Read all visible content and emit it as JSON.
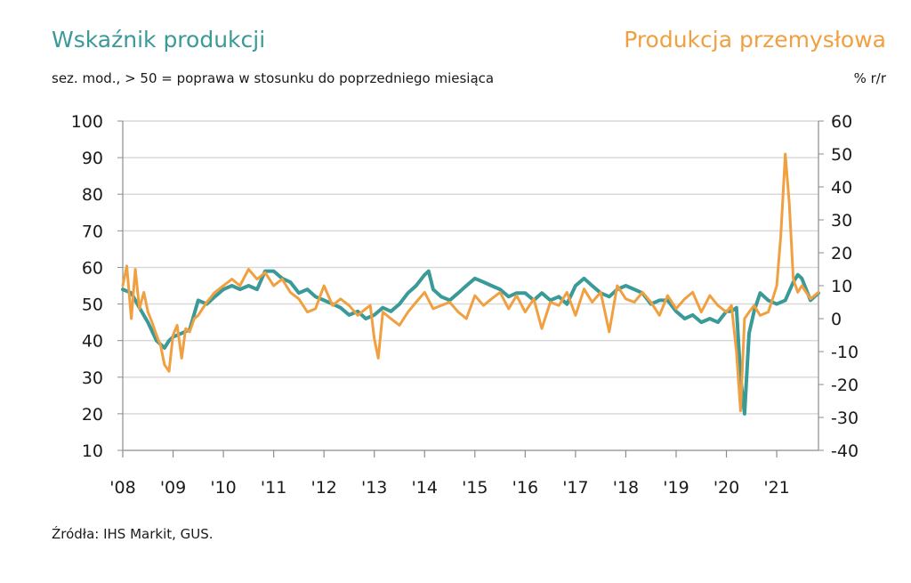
{
  "header": {
    "title_left": "Wskaźnik produkcji",
    "title_right": "Produkcja przemysłowa",
    "subtitle": "sez. mod., > 50 = poprawa w stosunku do poprzedniego miesiąca",
    "unit_right": "% r/r"
  },
  "footer": {
    "source": "Źródła: IHS Markit, GUS."
  },
  "colors": {
    "pmi": "#3a9a98",
    "production": "#f0a040",
    "grid": "#d9d9d9",
    "axis": "#8c8c8c"
  },
  "chart_data": {
    "type": "line",
    "x_range": [
      2008.0,
      2021.83
    ],
    "x_ticks": [
      {
        "year": 2008,
        "label": "'08"
      },
      {
        "year": 2009,
        "label": "'09"
      },
      {
        "year": 2010,
        "label": "'10"
      },
      {
        "year": 2011,
        "label": "'11"
      },
      {
        "year": 2012,
        "label": "'12"
      },
      {
        "year": 2013,
        "label": "'13"
      },
      {
        "year": 2014,
        "label": "'14"
      },
      {
        "year": 2015,
        "label": "'15"
      },
      {
        "year": 2016,
        "label": "'16"
      },
      {
        "year": 2017,
        "label": "'17"
      },
      {
        "year": 2018,
        "label": "'18"
      },
      {
        "year": 2019,
        "label": "'19"
      },
      {
        "year": 2020,
        "label": "'20"
      },
      {
        "year": 2021,
        "label": "'21"
      }
    ],
    "y_left": {
      "min": 10,
      "max": 100,
      "ticks": [
        "100",
        "90",
        "80",
        "70",
        "60",
        "50",
        "40",
        "30",
        "20",
        "10"
      ]
    },
    "y_right": {
      "min": -40,
      "max": 60,
      "ticks": [
        "60",
        "50",
        "40",
        "30",
        "20",
        "10",
        "0",
        "-10",
        "-20",
        "-30",
        "-40"
      ]
    },
    "grid": true,
    "series": [
      {
        "name": "Wskaźnik produkcji",
        "axis": "left",
        "x": [
          2008.0,
          2008.17,
          2008.33,
          2008.5,
          2008.67,
          2008.83,
          2008.92,
          2009.0,
          2009.17,
          2009.33,
          2009.5,
          2009.67,
          2009.83,
          2010.0,
          2010.17,
          2010.33,
          2010.5,
          2010.67,
          2010.83,
          2011.0,
          2011.17,
          2011.33,
          2011.5,
          2011.67,
          2011.83,
          2012.0,
          2012.17,
          2012.33,
          2012.5,
          2012.67,
          2012.83,
          2013.0,
          2013.17,
          2013.33,
          2013.5,
          2013.67,
          2013.83,
          2014.0,
          2014.08,
          2014.17,
          2014.33,
          2014.5,
          2014.67,
          2014.83,
          2015.0,
          2015.17,
          2015.33,
          2015.5,
          2015.67,
          2015.83,
          2016.0,
          2016.17,
          2016.33,
          2016.5,
          2016.67,
          2016.83,
          2017.0,
          2017.17,
          2017.33,
          2017.5,
          2017.67,
          2017.83,
          2018.0,
          2018.17,
          2018.33,
          2018.5,
          2018.67,
          2018.83,
          2019.0,
          2019.17,
          2019.33,
          2019.5,
          2019.67,
          2019.83,
          2020.0,
          2020.1,
          2020.2,
          2020.28,
          2020.36,
          2020.45,
          2020.55,
          2020.67,
          2020.83,
          2021.0,
          2021.17,
          2021.33,
          2021.42,
          2021.5,
          2021.67,
          2021.83
        ],
        "values": [
          54,
          53,
          49,
          45,
          40,
          38,
          40,
          41,
          42,
          43,
          51,
          50,
          52,
          54,
          55,
          54,
          55,
          54,
          59,
          59,
          57,
          56,
          53,
          54,
          52,
          51,
          50,
          49,
          47,
          48,
          46,
          47,
          49,
          48,
          50,
          53,
          55,
          58,
          59,
          54,
          52,
          51,
          53,
          55,
          57,
          56,
          55,
          54,
          52,
          53,
          53,
          51,
          53,
          51,
          52,
          50,
          55,
          57,
          55,
          53,
          52,
          54,
          55,
          54,
          53,
          50,
          51,
          51,
          48,
          46,
          47,
          45,
          46,
          45,
          48,
          48,
          49,
          30,
          20,
          42,
          48,
          53,
          51,
          50,
          51,
          56,
          58,
          57,
          51,
          53
        ]
      },
      {
        "name": "Produkcja przemysłowa",
        "axis": "right",
        "x": [
          2008.0,
          2008.08,
          2008.17,
          2008.25,
          2008.33,
          2008.42,
          2008.5,
          2008.58,
          2008.67,
          2008.75,
          2008.83,
          2008.92,
          2009.0,
          2009.08,
          2009.17,
          2009.25,
          2009.33,
          2009.42,
          2009.5,
          2009.67,
          2009.83,
          2010.0,
          2010.17,
          2010.33,
          2010.5,
          2010.67,
          2010.83,
          2011.0,
          2011.17,
          2011.33,
          2011.5,
          2011.67,
          2011.83,
          2012.0,
          2012.17,
          2012.33,
          2012.5,
          2012.67,
          2012.83,
          2012.92,
          2013.0,
          2013.08,
          2013.17,
          2013.33,
          2013.5,
          2013.67,
          2013.83,
          2014.0,
          2014.17,
          2014.33,
          2014.5,
          2014.67,
          2014.83,
          2015.0,
          2015.17,
          2015.33,
          2015.5,
          2015.67,
          2015.83,
          2016.0,
          2016.17,
          2016.33,
          2016.5,
          2016.67,
          2016.83,
          2017.0,
          2017.17,
          2017.33,
          2017.5,
          2017.67,
          2017.83,
          2018.0,
          2018.17,
          2018.33,
          2018.5,
          2018.67,
          2018.83,
          2019.0,
          2019.17,
          2019.33,
          2019.5,
          2019.67,
          2019.83,
          2020.0,
          2020.1,
          2020.2,
          2020.28,
          2020.36,
          2020.45,
          2020.55,
          2020.67,
          2020.83,
          2020.92,
          2021.0,
          2021.08,
          2021.17,
          2021.25,
          2021.33,
          2021.42,
          2021.5,
          2021.67,
          2021.83
        ],
        "values": [
          10,
          16,
          0,
          15,
          3,
          8,
          2,
          -1,
          -5,
          -8,
          -14,
          -16,
          -5,
          -2,
          -12,
          -3,
          -4,
          0,
          1,
          5,
          8,
          10,
          12,
          10,
          15,
          12,
          14,
          10,
          12,
          8,
          6,
          2,
          3,
          10,
          4,
          6,
          4,
          1,
          3,
          4,
          -6,
          -12,
          2,
          0,
          -2,
          2,
          5,
          8,
          3,
          4,
          5,
          2,
          0,
          7,
          4,
          6,
          8,
          3,
          7,
          2,
          6,
          -3,
          5,
          4,
          8,
          1,
          9,
          5,
          8,
          -4,
          10,
          6,
          5,
          8,
          5,
          1,
          7,
          3,
          6,
          8,
          2,
          7,
          4,
          2,
          4,
          -10,
          -28,
          0,
          2,
          4,
          1,
          2,
          6,
          10,
          25,
          50,
          35,
          12,
          8,
          10,
          6,
          8
        ]
      }
    ]
  }
}
